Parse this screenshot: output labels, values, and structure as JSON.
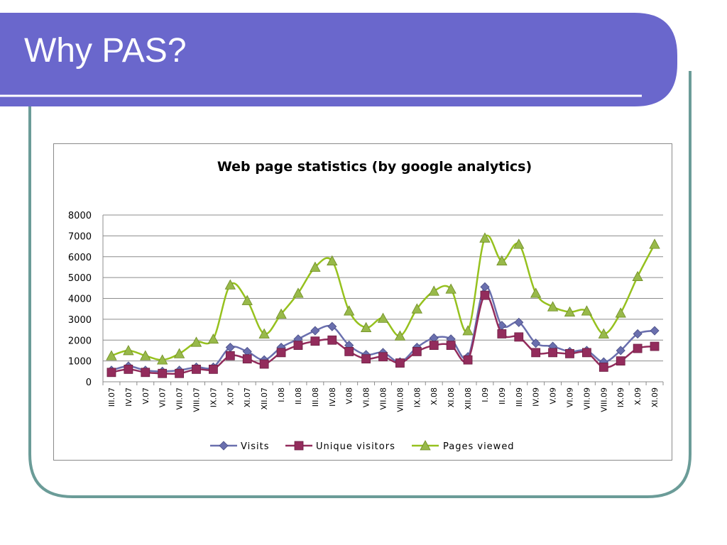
{
  "slide": {
    "title": "Why PAS?",
    "colors": {
      "banner": "#6a67cc",
      "border": "#6b9c98"
    }
  },
  "chart_data": {
    "type": "line",
    "title": "Web page statistics (by google analytics)",
    "xlabel": "",
    "ylabel": "",
    "ylim": [
      0,
      8000
    ],
    "yticks": [
      0,
      1000,
      2000,
      3000,
      4000,
      5000,
      6000,
      7000,
      8000
    ],
    "grid": true,
    "legend": "bottom",
    "categories": [
      "III.07",
      "IV.07",
      "V.07",
      "VI.07",
      "VII.07",
      "VIII.07",
      "IX.07",
      "X.07",
      "XI.07",
      "XII.07",
      "I.08",
      "II.08",
      "III.08",
      "IV.08",
      "V.08",
      "VI.08",
      "VII.08",
      "VIII.08",
      "IX.08",
      "X.08",
      "XI.08",
      "XII.08",
      "I.09",
      "II.09",
      "III.09",
      "IV.09",
      "V.09",
      "VI.09",
      "VII.09",
      "VIII.09",
      "IX.09",
      "X.09",
      "XI.09"
    ],
    "series": [
      {
        "name": "Visits",
        "color": "#6a6fae",
        "marker": "diamond",
        "values": [
          550,
          750,
          550,
          500,
          550,
          700,
          700,
          1650,
          1450,
          1050,
          1650,
          2050,
          2450,
          2650,
          1750,
          1300,
          1400,
          950,
          1650,
          2100,
          2050,
          1200,
          4550,
          2700,
          2850,
          1850,
          1700,
          1450,
          1500,
          950,
          1500,
          2300,
          2450
        ]
      },
      {
        "name": "Unique visitors",
        "color": "#932c5c",
        "marker": "square",
        "values": [
          450,
          600,
          450,
          400,
          400,
          600,
          600,
          1250,
          1100,
          850,
          1400,
          1750,
          1950,
          2000,
          1450,
          1100,
          1200,
          900,
          1450,
          1750,
          1750,
          1050,
          4150,
          2300,
          2150,
          1400,
          1400,
          1350,
          1400,
          700,
          1000,
          1600,
          1700
        ]
      },
      {
        "name": "Pages viewed",
        "color": "#96c11e",
        "marker": "triangle",
        "values": [
          1250,
          1500,
          1250,
          1050,
          1350,
          1900,
          2050,
          4650,
          3900,
          2300,
          3250,
          4250,
          5500,
          5800,
          3400,
          2600,
          3050,
          2200,
          3500,
          4350,
          4450,
          2450,
          6900,
          5800,
          6600,
          4250,
          3600,
          3350,
          3400,
          2300,
          3300,
          5050,
          6600
        ]
      }
    ]
  }
}
